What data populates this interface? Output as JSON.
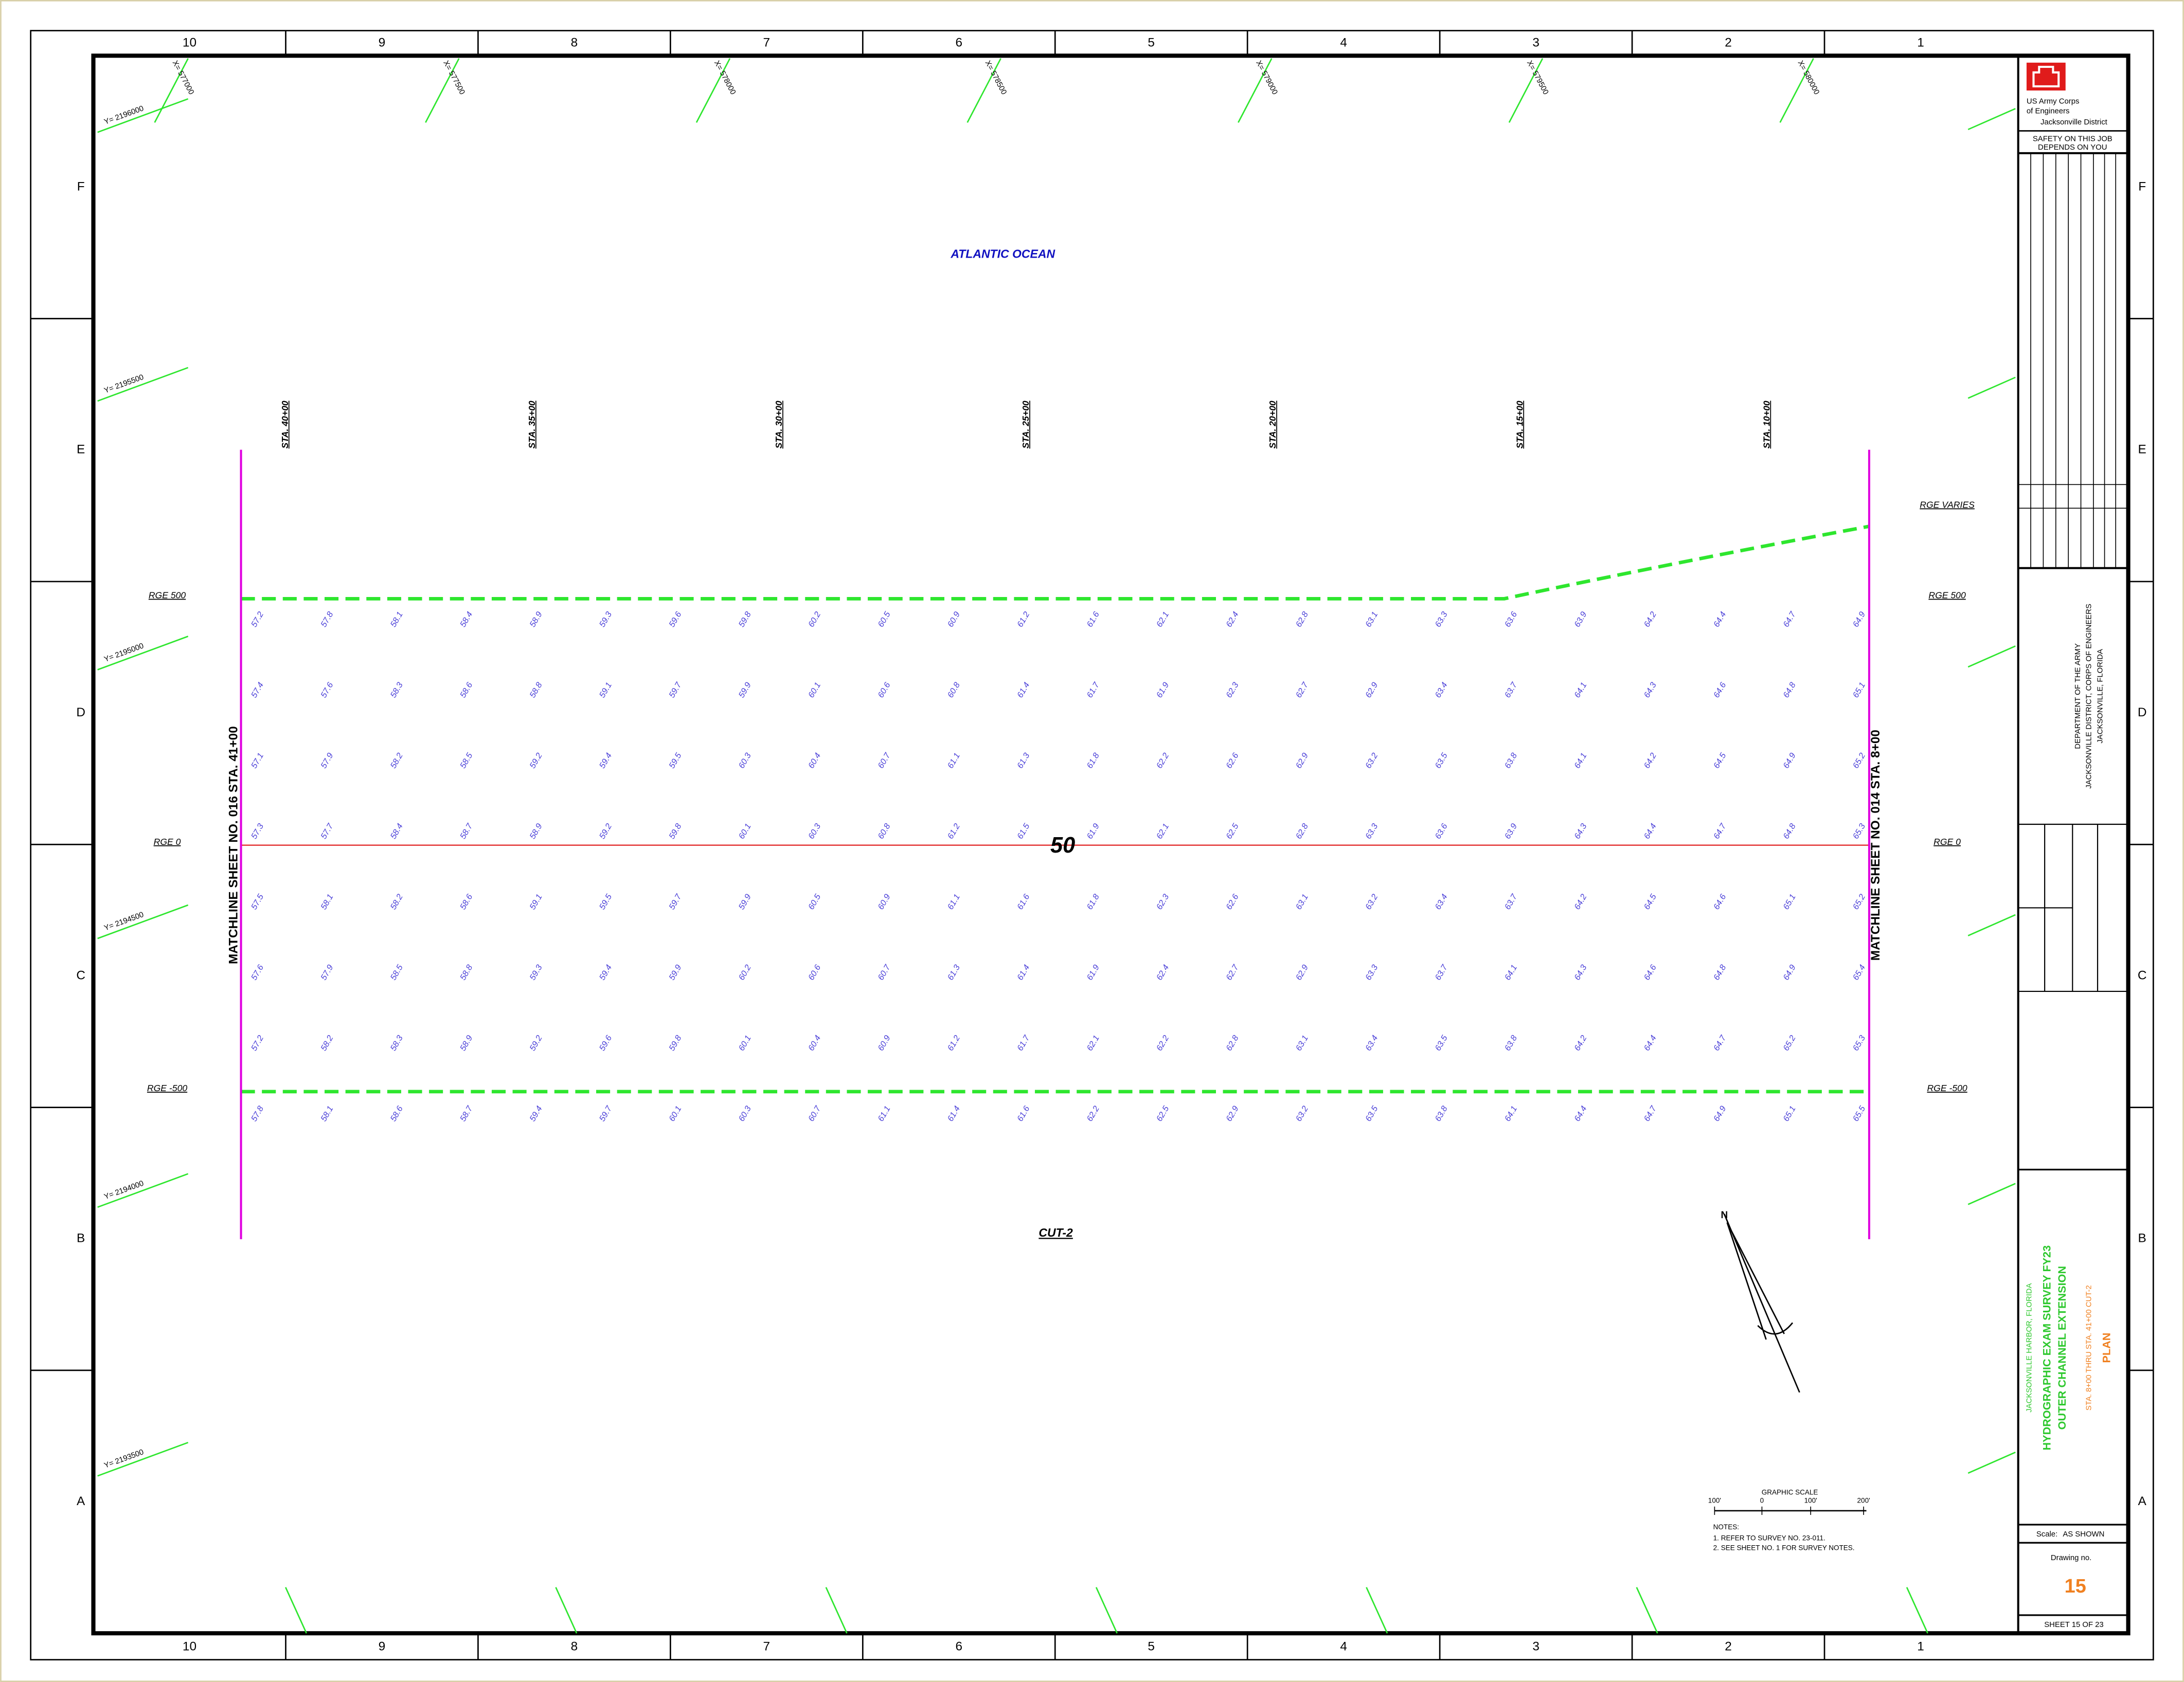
{
  "border": {
    "columns": [
      "10",
      "9",
      "8",
      "7",
      "6",
      "5",
      "4",
      "3",
      "2",
      "1"
    ],
    "rows": [
      "F",
      "E",
      "D",
      "C",
      "B",
      "A"
    ]
  },
  "grid_labels": {
    "x": [
      "X= 577000",
      "X= 577500",
      "X= 578000",
      "X= 578500",
      "X= 579000",
      "X= 579500",
      "X= 580000"
    ],
    "y": [
      "Y= 2196000",
      "Y= 2195500",
      "Y= 2195000",
      "Y= 2194500",
      "Y= 2194000",
      "Y= 2193500"
    ]
  },
  "plan": {
    "water_body": "ATLANTIC OCEAN",
    "stations": [
      "STA. 40+00",
      "STA. 35+00",
      "STA. 30+00",
      "STA. 25+00",
      "STA. 20+00",
      "STA. 15+00",
      "STA. 10+00"
    ],
    "ranges_left": [
      "RGE 500",
      "RGE 0",
      "RGE -500"
    ],
    "ranges_right": [
      "RGE VARIES",
      "RGE 500",
      "RGE 0",
      "RGE -500"
    ],
    "matchline_left": "MATCHLINE SHEET NO. 016 STA. 41+00",
    "matchline_right": "MATCHLINE SHEET NO. 014 STA. 8+00",
    "depth_label": "50",
    "cut": "CUT-2",
    "north": "N",
    "soundings": [
      [
        57.2,
        57.8,
        58.1,
        58.4,
        58.9,
        59.3,
        59.6,
        59.8,
        60.2,
        60.5,
        60.9,
        61.2,
        61.6,
        62.1,
        62.4,
        62.8,
        63.1,
        63.3,
        63.6,
        63.9,
        64.2,
        64.4,
        64.7,
        64.9
      ],
      [
        57.4,
        57.6,
        58.3,
        58.6,
        58.8,
        59.1,
        59.7,
        59.9,
        60.1,
        60.6,
        60.8,
        61.4,
        61.7,
        61.9,
        62.3,
        62.7,
        62.9,
        63.4,
        63.7,
        64.1,
        64.3,
        64.6,
        64.8,
        65.1
      ],
      [
        57.1,
        57.9,
        58.2,
        58.5,
        59.2,
        59.4,
        59.5,
        60.3,
        60.4,
        60.7,
        61.1,
        61.3,
        61.8,
        62.2,
        62.6,
        62.9,
        63.2,
        63.5,
        63.8,
        64.1,
        64.2,
        64.5,
        64.9,
        65.2
      ],
      [
        57.3,
        57.7,
        58.4,
        58.7,
        58.9,
        59.2,
        59.8,
        60.1,
        60.3,
        60.8,
        61.2,
        61.5,
        61.9,
        62.1,
        62.5,
        62.8,
        63.3,
        63.6,
        63.9,
        64.3,
        64.4,
        64.7,
        64.8,
        65.3
      ],
      [
        57.5,
        58.1,
        58.2,
        58.6,
        59.1,
        59.5,
        59.7,
        59.9,
        60.5,
        60.9,
        61.1,
        61.6,
        61.8,
        62.3,
        62.6,
        63.1,
        63.2,
        63.4,
        63.7,
        64.2,
        64.5,
        64.6,
        65.1,
        65.2
      ],
      [
        57.6,
        57.9,
        58.5,
        58.8,
        59.3,
        59.4,
        59.9,
        60.2,
        60.6,
        60.7,
        61.3,
        61.4,
        61.9,
        62.4,
        62.7,
        62.9,
        63.3,
        63.7,
        64.1,
        64.3,
        64.6,
        64.8,
        64.9,
        65.4
      ],
      [
        57.2,
        58.2,
        58.3,
        58.9,
        59.2,
        59.6,
        59.8,
        60.1,
        60.4,
        60.9,
        61.2,
        61.7,
        62.1,
        62.2,
        62.8,
        63.1,
        63.4,
        63.5,
        63.8,
        64.2,
        64.4,
        64.7,
        65.2,
        65.3
      ],
      [
        57.8,
        58.1,
        58.6,
        58.7,
        59.4,
        59.7,
        60.1,
        60.3,
        60.7,
        61.1,
        61.4,
        61.6,
        62.2,
        62.5,
        62.9,
        63.2,
        63.5,
        63.8,
        64.1,
        64.4,
        64.7,
        64.9,
        65.1,
        65.5
      ]
    ]
  },
  "scale": {
    "title": "GRAPHIC SCALE",
    "ticks": [
      "100'",
      "0",
      "100'",
      "200'"
    ]
  },
  "notes": {
    "title": "NOTES:",
    "items": [
      "1. REFER TO SURVEY NO. 23-011.",
      "2. SEE SHEET NO. 1 FOR SURVEY NOTES."
    ]
  },
  "title_block": {
    "agency": [
      "US Army Corps",
      "of Engineers"
    ],
    "district": "Jacksonville District",
    "safety": [
      "SAFETY ON THIS JOB",
      "DEPENDS ON YOU"
    ],
    "department": [
      "DEPARTMENT OF THE ARMY",
      "JACKSONVILLE DISTRICT, CORPS OF ENGINEERS",
      "JACKSONVILLE, FLORIDA"
    ],
    "project": "JACKSONVILLE HARBOR, FLORIDA",
    "title": [
      "HYDROGRAPHIC EXAM SURVEY FY23",
      "OUTER CHANNEL EXTENSION"
    ],
    "subtitle": "STA. 8+00 THRU STA. 41+00 CUT-2",
    "view": "PLAN",
    "scale_label": "Scale:",
    "scale_value": "AS SHOWN",
    "drawing_label": "Drawing no.",
    "drawing_no": "15",
    "sheet": "SHEET 15 OF 23"
  }
}
